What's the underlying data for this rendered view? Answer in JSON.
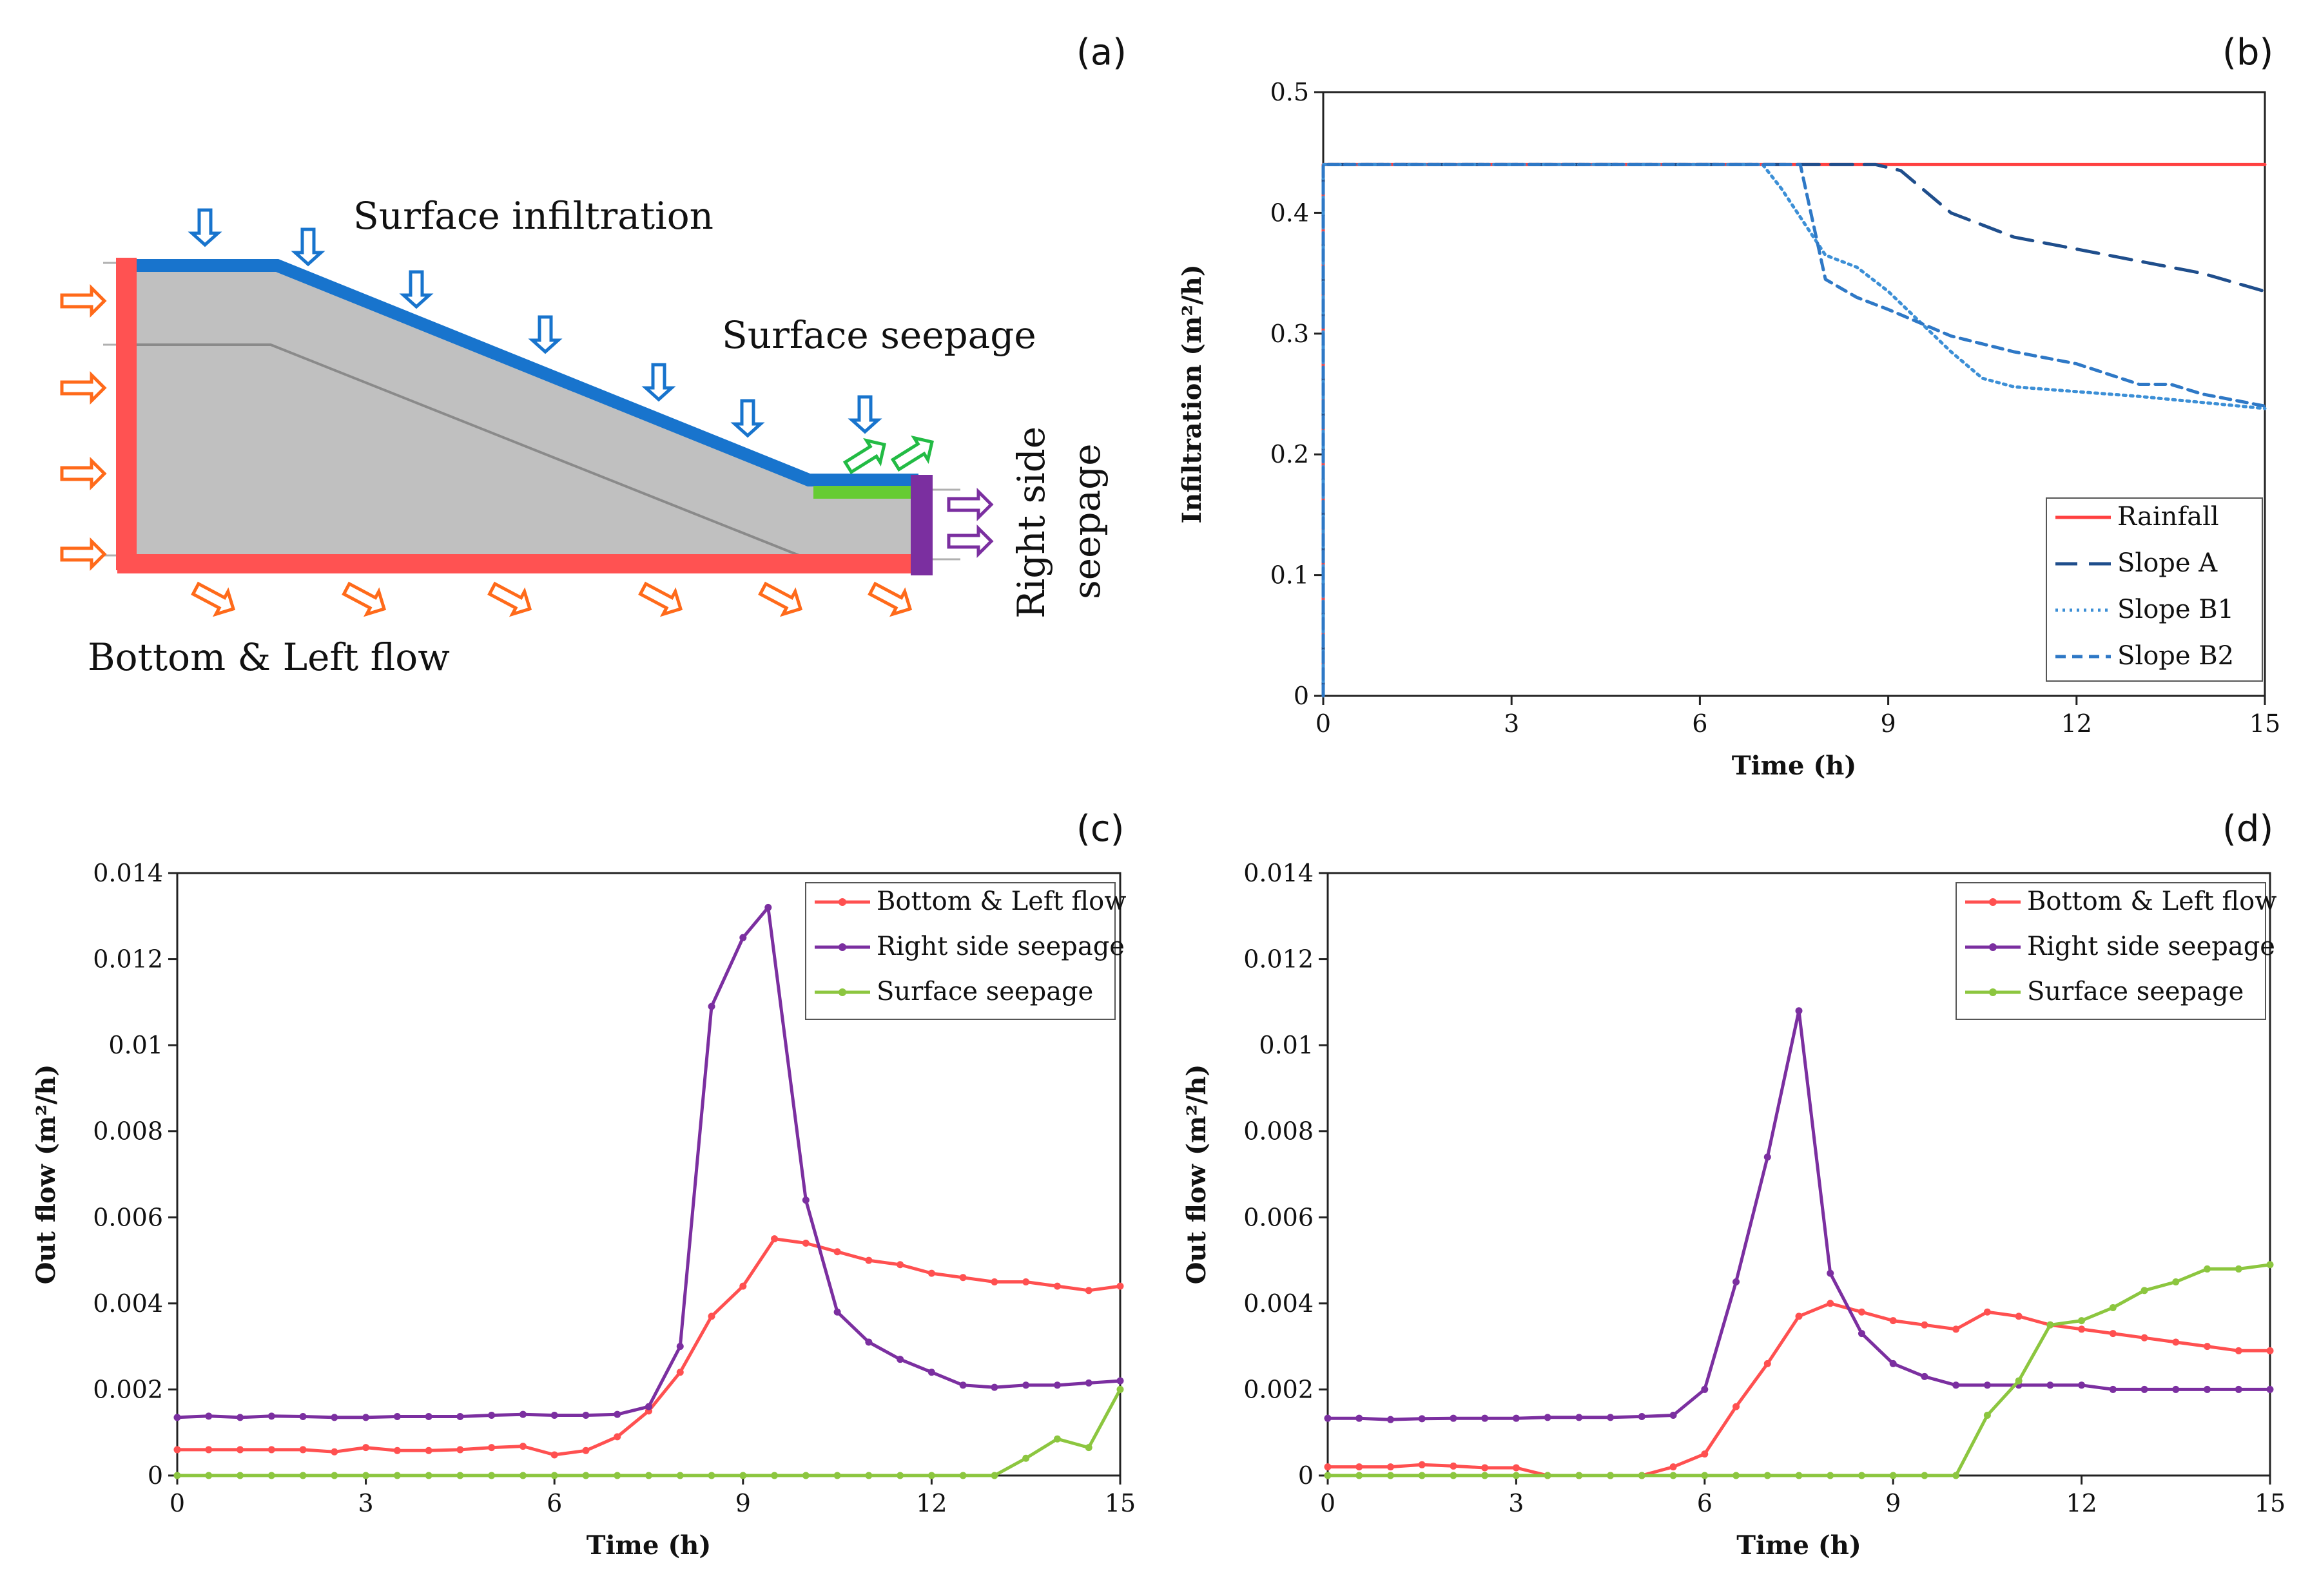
{
  "figure": {
    "panel_a": {
      "letter": "(a)",
      "labels": {
        "surface_infiltration": "Surface infiltration",
        "surface_seepage": "Surface seepage",
        "right_side_seepage_line1": "Right side",
        "right_side_seepage_line2": "seepage",
        "bottom_left_flow": "Bottom & Left flow"
      },
      "colors": {
        "infiltration": "#1874cd",
        "boundary_flow": "#ff5252",
        "inflow_arrows": "#ff6a1a",
        "seepage_face": "#66cc33",
        "right_boundary": "#7b2fa0",
        "soil": "#c0c0c0"
      }
    },
    "colors": {
      "rainfall": "#ff4040",
      "slopeA": "#1f4e8c",
      "slopeB1": "#3c8fd6",
      "slopeB2": "#2e78c6",
      "bottom_left": "#ff5050",
      "right_side": "#7b2fa0",
      "surface": "#8cc63f"
    }
  },
  "chart_data": [
    {
      "panel": "(b)",
      "type": "line",
      "title": "",
      "xlabel": "Time (h)",
      "ylabel": "Infiltration (m²/h)",
      "xlim": [
        0,
        15
      ],
      "ylim": [
        0,
        0.5
      ],
      "xticks": [
        0,
        3,
        6,
        9,
        12,
        15
      ],
      "yticks": [
        0,
        0.1,
        0.2,
        0.3,
        0.4,
        0.5
      ],
      "ytick_labels": [
        "0",
        "0.1",
        "0.2",
        "0.3",
        "0.4",
        "0.5"
      ],
      "legend_position": "bottom-right",
      "series": [
        {
          "name": "Rainfall",
          "style": "solid",
          "color": "#ff4040",
          "x": [
            0,
            0,
            15
          ],
          "y": [
            0,
            0.44,
            0.44
          ]
        },
        {
          "name": "Slope A",
          "style": "longdash",
          "color": "#1f4e8c",
          "x": [
            0,
            0,
            6,
            8.8,
            9.2,
            10,
            11,
            12,
            13,
            14,
            15
          ],
          "y": [
            0,
            0.44,
            0.44,
            0.44,
            0.435,
            0.4,
            0.38,
            0.37,
            0.36,
            0.35,
            0.335
          ]
        },
        {
          "name": "Slope B1",
          "style": "dotted",
          "color": "#3c8fd6",
          "x": [
            0,
            0,
            7,
            7.3,
            8,
            8.5,
            9,
            9.5,
            10,
            10.5,
            11,
            12,
            13,
            14,
            15
          ],
          "y": [
            0,
            0.44,
            0.44,
            0.42,
            0.365,
            0.355,
            0.335,
            0.31,
            0.285,
            0.263,
            0.256,
            0.252,
            0.248,
            0.243,
            0.238
          ]
        },
        {
          "name": "Slope B2",
          "style": "dashed",
          "color": "#2e78c6",
          "x": [
            0,
            0,
            6,
            7.6,
            8,
            8.5,
            9,
            10,
            11,
            12,
            13,
            13.5,
            14,
            15
          ],
          "y": [
            0,
            0.44,
            0.44,
            0.44,
            0.345,
            0.33,
            0.32,
            0.298,
            0.285,
            0.275,
            0.258,
            0.258,
            0.25,
            0.24
          ]
        }
      ]
    },
    {
      "panel": "(c)",
      "type": "line",
      "title": "",
      "xlabel": "Time (h)",
      "ylabel": "Out flow (m²/h)",
      "xlim": [
        0,
        15
      ],
      "ylim": [
        0,
        0.014
      ],
      "xticks": [
        0,
        3,
        6,
        9,
        12,
        15
      ],
      "yticks": [
        0,
        0.002,
        0.004,
        0.006,
        0.008,
        0.01,
        0.012,
        0.014
      ],
      "ytick_labels": [
        "0",
        "0.002",
        "0.004",
        "0.006",
        "0.008",
        "0.01",
        "0.012",
        "0.014"
      ],
      "legend_position": "top-right",
      "series": [
        {
          "name": "Bottom & Left flow",
          "color": "#ff5050",
          "x": [
            0,
            0.5,
            1,
            1.5,
            2,
            2.5,
            3,
            3.5,
            4,
            4.5,
            5,
            5.5,
            6,
            6.5,
            7,
            7.5,
            8,
            8.5,
            9,
            9.5,
            10,
            10.5,
            11,
            11.5,
            12,
            12.5,
            13,
            13.5,
            14,
            14.5,
            15
          ],
          "y": [
            0.0006,
            0.0006,
            0.0006,
            0.0006,
            0.0006,
            0.00055,
            0.00065,
            0.00058,
            0.00058,
            0.0006,
            0.00065,
            0.00068,
            0.00048,
            0.00058,
            0.0009,
            0.0015,
            0.0024,
            0.0037,
            0.0044,
            0.0055,
            0.0054,
            0.0052,
            0.005,
            0.0049,
            0.0047,
            0.0046,
            0.0045,
            0.0045,
            0.0044,
            0.0043,
            0.0044
          ]
        },
        {
          "name": "Right side seepage",
          "color": "#7b2fa0",
          "x": [
            0,
            0.5,
            1,
            1.5,
            2,
            2.5,
            3,
            3.5,
            4,
            4.5,
            5,
            5.5,
            6,
            6.5,
            7,
            7.5,
            8,
            8.5,
            9,
            9.4,
            10,
            10.5,
            11,
            11.5,
            12,
            12.5,
            13,
            13.5,
            14,
            14.5,
            15
          ],
          "y": [
            0.00135,
            0.00138,
            0.00135,
            0.00138,
            0.00137,
            0.00135,
            0.00135,
            0.00137,
            0.00137,
            0.00137,
            0.0014,
            0.00142,
            0.0014,
            0.0014,
            0.00142,
            0.0016,
            0.003,
            0.0109,
            0.0125,
            0.0132,
            0.0064,
            0.0038,
            0.0031,
            0.0027,
            0.0024,
            0.0021,
            0.00205,
            0.0021,
            0.0021,
            0.00215,
            0.0022
          ]
        },
        {
          "name": "Surface seepage",
          "color": "#8cc63f",
          "x": [
            0,
            0.5,
            1,
            1.5,
            2,
            2.5,
            3,
            3.5,
            4,
            4.5,
            5,
            5.5,
            6,
            6.5,
            7,
            7.5,
            8,
            8.5,
            9,
            9.5,
            10,
            10.5,
            11,
            11.5,
            12,
            12.5,
            13,
            13.5,
            14,
            14.5,
            15
          ],
          "y": [
            0,
            0,
            0,
            0,
            0,
            0,
            0,
            0,
            0,
            0,
            0,
            0,
            0,
            0,
            0,
            0,
            0,
            0,
            0,
            0,
            0,
            0,
            0,
            0,
            0,
            0,
            0,
            0.0004,
            0.00085,
            0.00065,
            0.002
          ]
        }
      ]
    },
    {
      "panel": "(d)",
      "type": "line",
      "title": "",
      "xlabel": "Time (h)",
      "ylabel": "Out flow (m²/h)",
      "xlim": [
        0,
        15
      ],
      "ylim": [
        0,
        0.014
      ],
      "xticks": [
        0,
        3,
        6,
        9,
        12,
        15
      ],
      "yticks": [
        0,
        0.002,
        0.004,
        0.006,
        0.008,
        0.01,
        0.012,
        0.014
      ],
      "ytick_labels": [
        "0",
        "0.002",
        "0.004",
        "0.006",
        "0.008",
        "0.01",
        "0.012",
        "0.014"
      ],
      "legend_position": "top-right",
      "series": [
        {
          "name": "Bottom & Left flow",
          "color": "#ff5050",
          "x": [
            0,
            0.5,
            1,
            1.5,
            2,
            2.5,
            3,
            3.5,
            4,
            4.5,
            5,
            5.5,
            6,
            6.5,
            7,
            7.5,
            8,
            8.5,
            9,
            9.5,
            10,
            10.5,
            11,
            11.5,
            12,
            12.5,
            13,
            13.5,
            14,
            14.5,
            15
          ],
          "y": [
            0.0002,
            0.0002,
            0.0002,
            0.00025,
            0.00022,
            0.00018,
            0.00018,
            0,
            0,
            0,
            0,
            0.0002,
            0.0005,
            0.0016,
            0.0026,
            0.0037,
            0.004,
            0.0038,
            0.0036,
            0.0035,
            0.0034,
            0.0038,
            0.0037,
            0.0035,
            0.0034,
            0.0033,
            0.0032,
            0.0031,
            0.003,
            0.0029,
            0.0029
          ]
        },
        {
          "name": "Right side seepage",
          "color": "#7b2fa0",
          "x": [
            0,
            0.5,
            1,
            1.5,
            2,
            2.5,
            3,
            3.5,
            4,
            4.5,
            5,
            5.5,
            6,
            6.5,
            7,
            7.5,
            8,
            8.5,
            9,
            9.5,
            10,
            10.5,
            11,
            11.5,
            12,
            12.5,
            13,
            13.5,
            14,
            14.5,
            15
          ],
          "y": [
            0.00133,
            0.00133,
            0.0013,
            0.00132,
            0.00133,
            0.00133,
            0.00133,
            0.00135,
            0.00135,
            0.00135,
            0.00137,
            0.0014,
            0.002,
            0.0045,
            0.0074,
            0.0108,
            0.0047,
            0.0033,
            0.0026,
            0.0023,
            0.0021,
            0.0021,
            0.0021,
            0.0021,
            0.0021,
            0.002,
            0.002,
            0.002,
            0.002,
            0.002,
            0.002
          ]
        },
        {
          "name": "Surface seepage",
          "color": "#8cc63f",
          "x": [
            0,
            0.5,
            1,
            1.5,
            2,
            2.5,
            3,
            3.5,
            4,
            4.5,
            5,
            5.5,
            6,
            6.5,
            7,
            7.5,
            8,
            8.5,
            9,
            9.5,
            10,
            10.5,
            11,
            11.5,
            12,
            12.5,
            13,
            13.5,
            14,
            14.5,
            15
          ],
          "y": [
            0,
            0,
            0,
            0,
            0,
            0,
            0,
            0,
            0,
            0,
            0,
            0,
            0,
            0,
            0,
            0,
            0,
            0,
            0,
            0,
            0,
            0.0014,
            0.0022,
            0.0035,
            0.0036,
            0.0039,
            0.0043,
            0.0045,
            0.0048,
            0.0048,
            0.0049
          ]
        }
      ]
    }
  ]
}
